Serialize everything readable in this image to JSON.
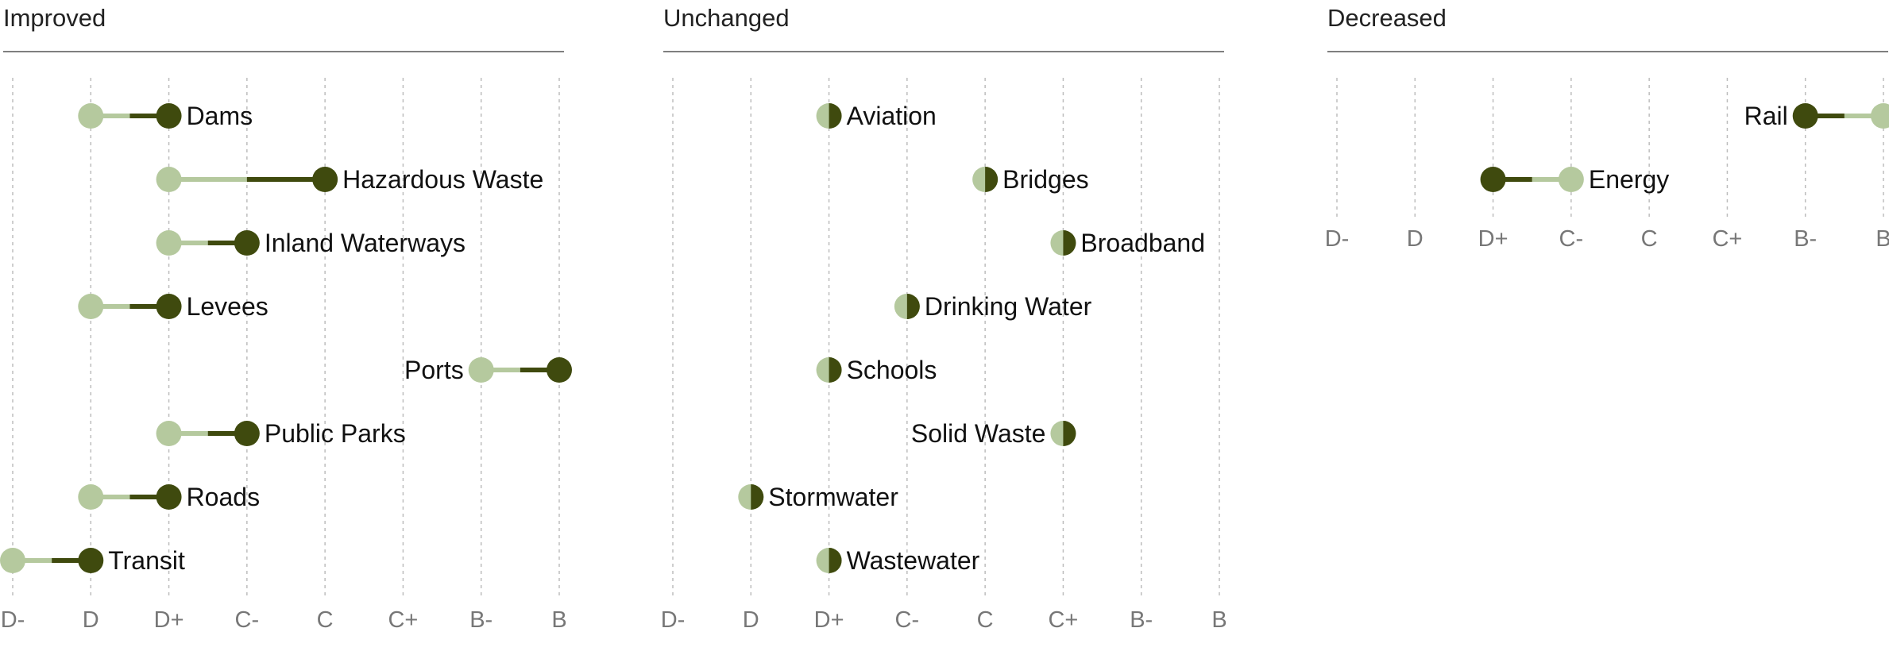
{
  "colors": {
    "before": "#b5c99e",
    "after": "#3f4a0e",
    "grid": "#bdbdbd",
    "text": "#111111",
    "tick": "#777777"
  },
  "chart_data": {
    "type": "dumbbell",
    "grades": [
      "D-",
      "D",
      "D+",
      "C-",
      "C",
      "C+",
      "B-",
      "B"
    ],
    "panels": [
      {
        "title": "Improved",
        "rows": [
          {
            "label": "Dams",
            "from": "D",
            "to": "D+"
          },
          {
            "label": "Hazardous Waste",
            "from": "D+",
            "to": "C"
          },
          {
            "label": "Inland Waterways",
            "from": "D+",
            "to": "C-"
          },
          {
            "label": "Levees",
            "from": "D",
            "to": "D+"
          },
          {
            "label": "Ports",
            "from": "B-",
            "to": "B"
          },
          {
            "label": "Public Parks",
            "from": "D+",
            "to": "C-"
          },
          {
            "label": "Roads",
            "from": "D",
            "to": "D+"
          },
          {
            "label": "Transit",
            "from": "D-",
            "to": "D"
          }
        ]
      },
      {
        "title": "Unchanged",
        "rows": [
          {
            "label": "Aviation",
            "from": "D+",
            "to": "D+"
          },
          {
            "label": "Bridges",
            "from": "C",
            "to": "C"
          },
          {
            "label": "Broadband",
            "from": "C+",
            "to": "C+"
          },
          {
            "label": "Drinking Water",
            "from": "C-",
            "to": "C-"
          },
          {
            "label": "Schools",
            "from": "D+",
            "to": "D+"
          },
          {
            "label": "Solid Waste",
            "from": "C+",
            "to": "C+"
          },
          {
            "label": "Stormwater",
            "from": "D",
            "to": "D"
          },
          {
            "label": "Wastewater",
            "from": "D+",
            "to": "D+"
          }
        ]
      },
      {
        "title": "Decreased",
        "rows": [
          {
            "label": "Rail",
            "from": "B",
            "to": "B-"
          },
          {
            "label": "Energy",
            "from": "C-",
            "to": "D+"
          }
        ]
      }
    ]
  }
}
